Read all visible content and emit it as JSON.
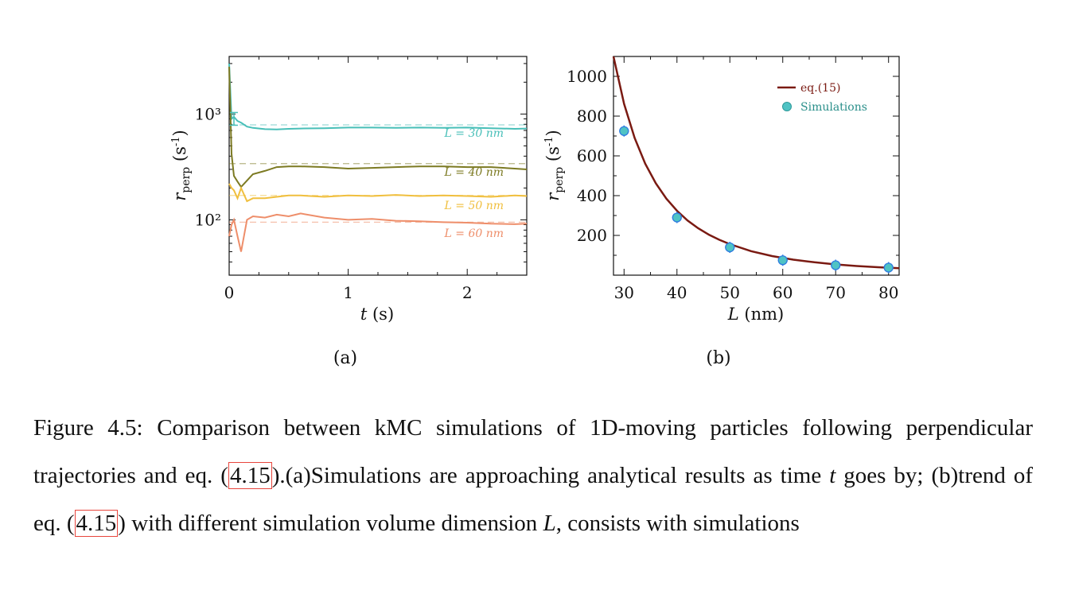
{
  "chart_data": [
    {
      "type": "line",
      "panel_label": "(a)",
      "xlabel": "t (s)",
      "ylabel": "r_perp (s⁻¹)",
      "xlim": [
        0,
        2.5
      ],
      "ylim": [
        30,
        3500
      ],
      "yscale": "log",
      "xticks": [
        0,
        1,
        2
      ],
      "yticks": [
        100,
        1000
      ],
      "ytick_labels": [
        "10²",
        "10³"
      ],
      "series": [
        {
          "name": "L = 30 nm",
          "color": "#48bfb8",
          "analytical": 790,
          "x": [
            0.0,
            0.02,
            0.04,
            0.07,
            0.1,
            0.15,
            0.2,
            0.3,
            0.4,
            0.5,
            0.6,
            0.8,
            1.0,
            1.2,
            1.4,
            1.6,
            1.8,
            2.0,
            2.2,
            2.4,
            2.5
          ],
          "values": [
            3000,
            900,
            940,
            860,
            830,
            760,
            740,
            720,
            715,
            725,
            730,
            735,
            745,
            745,
            740,
            745,
            740,
            745,
            735,
            725,
            730
          ]
        },
        {
          "name": "L = 40 nm",
          "color": "#7c7a22",
          "analytical": 340,
          "x": [
            0.0,
            0.02,
            0.04,
            0.07,
            0.1,
            0.15,
            0.2,
            0.3,
            0.4,
            0.5,
            0.6,
            0.8,
            1.0,
            1.2,
            1.4,
            1.6,
            1.8,
            2.0,
            2.2,
            2.4,
            2.5
          ],
          "values": [
            2800,
            420,
            260,
            230,
            205,
            235,
            270,
            290,
            315,
            320,
            320,
            315,
            305,
            310,
            315,
            320,
            320,
            315,
            315,
            305,
            300
          ]
        },
        {
          "name": "L = 50 nm",
          "color": "#f0bf3e",
          "analytical": 170,
          "x": [
            0.0,
            0.02,
            0.04,
            0.07,
            0.1,
            0.15,
            0.2,
            0.3,
            0.4,
            0.5,
            0.6,
            0.8,
            1.0,
            1.2,
            1.4,
            1.6,
            1.8,
            2.0,
            2.2,
            2.4,
            2.5
          ],
          "values": [
            220,
            200,
            190,
            160,
            200,
            150,
            160,
            160,
            165,
            170,
            170,
            165,
            170,
            168,
            172,
            168,
            170,
            168,
            165,
            170,
            168
          ]
        },
        {
          "name": "L = 60 nm",
          "color": "#ee8e6a",
          "analytical": 95,
          "x": [
            0.0,
            0.02,
            0.04,
            0.07,
            0.1,
            0.15,
            0.2,
            0.3,
            0.4,
            0.5,
            0.6,
            0.8,
            1.0,
            1.2,
            1.4,
            1.6,
            1.8,
            2.0,
            2.2,
            2.4,
            2.5
          ],
          "values": [
            70,
            90,
            100,
            70,
            50,
            100,
            108,
            105,
            112,
            108,
            115,
            105,
            100,
            102,
            98,
            97,
            95,
            94,
            92,
            91,
            92
          ]
        }
      ]
    },
    {
      "type": "scatter",
      "panel_label": "(b)",
      "xlabel": "L (nm)",
      "ylabel": "r_perp (s⁻¹)",
      "xlim": [
        28,
        82
      ],
      "ylim": [
        0,
        1100
      ],
      "xticks": [
        30,
        40,
        50,
        60,
        70,
        80
      ],
      "yticks": [
        200,
        400,
        600,
        800,
        1000
      ],
      "series": [
        {
          "name": "eq.(15)",
          "kind": "line",
          "color": "#7a1a12",
          "x": [
            28,
            30,
            32,
            34,
            36,
            38,
            40,
            42,
            44,
            46,
            48,
            50,
            54,
            58,
            62,
            66,
            70,
            74,
            78,
            82
          ],
          "values": [
            1100,
            862,
            690,
            561,
            462,
            385,
            324,
            275,
            236,
            204,
            178,
            156,
            121,
            96,
            78,
            65,
            54,
            46,
            40,
            35
          ]
        },
        {
          "name": "Simulations",
          "kind": "points",
          "color": "#4fc3c4",
          "edge": "#2f7de0",
          "x": [
            30,
            40,
            50,
            60,
            70,
            80
          ],
          "values": [
            725,
            290,
            140,
            75,
            50,
            38
          ]
        }
      ]
    }
  ],
  "caption": {
    "p1": "Figure 4.5: Comparison between kMC simulations of 1D-moving particles following perpendicular trajectories and eq. (",
    "ref1": "4.15",
    "p2": ").(a)Simulations are approaching analytical results as time ",
    "t": "t",
    "p3": " goes by; (b)trend of eq. (",
    "ref2": "4.15",
    "p4": ") with different simulation volume dimension ",
    "L": "L",
    "p5": ", consists with simulations"
  }
}
